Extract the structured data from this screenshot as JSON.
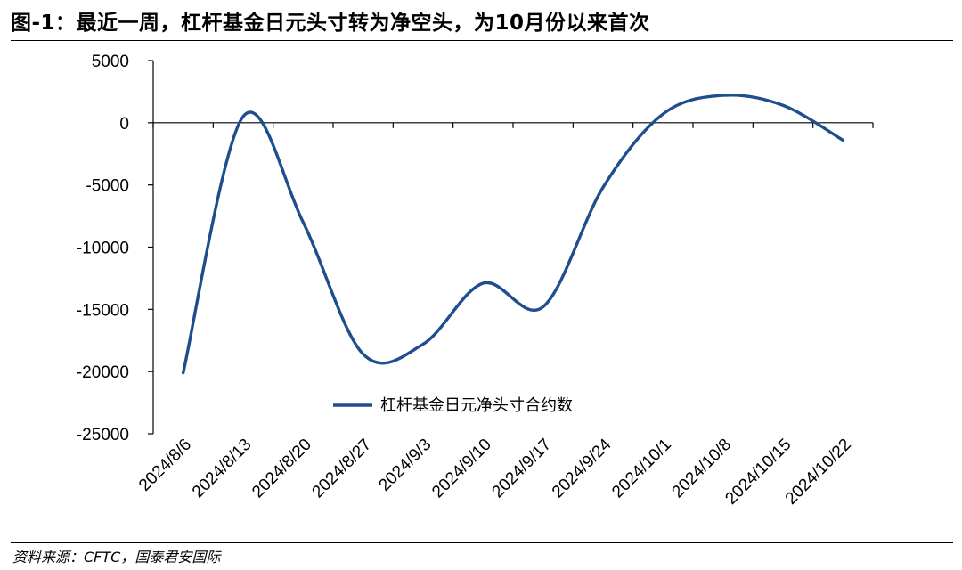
{
  "title": "图-1：最近一周，杠杆基金日元头寸转为净空头，为10月份以来首次",
  "source": "资料来源：CFTC，国泰君安国际",
  "chart_data": {
    "type": "line",
    "title": "图-1：最近一周，杠杆基金日元头寸转为净空头，为10月份以来首次",
    "xlabel": "",
    "ylabel": "",
    "ylim": [
      -25000,
      5000
    ],
    "yticks": [
      5000,
      0,
      -5000,
      -10000,
      -15000,
      -20000,
      -25000
    ],
    "ytick_labels": [
      "5000",
      "0",
      "-5000",
      "-10000",
      "-15000",
      "-20000",
      "-25000"
    ],
    "categories": [
      "2024/8/6",
      "2024/8/13",
      "2024/8/20",
      "2024/8/27",
      "2024/9/3",
      "2024/9/10",
      "2024/9/17",
      "2024/9/24",
      "2024/10/1",
      "2024/10/8",
      "2024/10/15",
      "2024/10/22"
    ],
    "series": [
      {
        "name": "杠杆基金日元净头寸合约数",
        "color": "#1f4e8c",
        "values": [
          -20100,
          500,
          -8000,
          -18600,
          -17800,
          -12900,
          -14800,
          -5200,
          700,
          2200,
          1400,
          -1400
        ]
      }
    ],
    "grid": false,
    "legend_position": "center-lower"
  }
}
